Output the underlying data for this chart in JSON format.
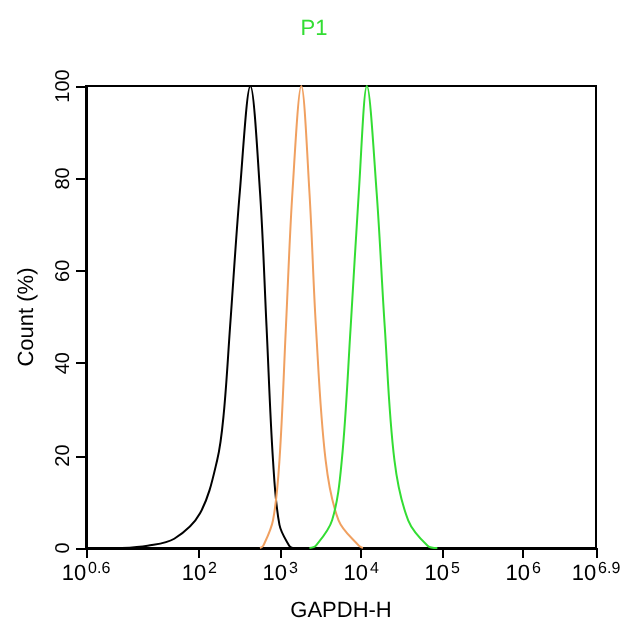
{
  "chart_data": {
    "type": "line",
    "title": "P1",
    "xlabel": "GAPDH-H",
    "ylabel": "Count (%)",
    "log": "x",
    "xlim": [
      3.981,
      7943282
    ],
    "xticks": [
      {
        "value": 3.981,
        "label": "10$^{0.6}$"
      },
      {
        "value": 100,
        "label": "10$^{2}$"
      },
      {
        "value": 1000,
        "label": "10$^{3}$"
      },
      {
        "value": 10000,
        "label": "10$^{4}$"
      },
      {
        "value": 100000,
        "label": "10$^{5}$"
      },
      {
        "value": 1000000,
        "label": "10$^{6}$"
      },
      {
        "value": 7943282,
        "label": "10$^{6.9}$"
      }
    ],
    "ylim": [
      0,
      100
    ],
    "yticks": [
      0,
      20,
      40,
      60,
      80,
      100
    ],
    "grid": false,
    "marker": "none",
    "line_style": "solid",
    "series": [
      {
        "color": "#000000",
        "x": [
          11,
          23,
          49,
          102,
          166,
          200,
          240,
          316,
          427,
          562,
          676,
          813,
          977,
          1288,
          1413
        ],
        "values": [
          0,
          0.5,
          2,
          7.5,
          19,
          29,
          48,
          77,
          100,
          77,
          48,
          19,
          5,
          0.5,
          0
        ]
      },
      {
        "color": "#f0a060",
        "x": [
          562,
          617,
          813,
          977,
          1175,
          1413,
          1820,
          2291,
          2754,
          3631,
          5248,
          9333,
          10471
        ],
        "values": [
          0,
          0.5,
          6,
          19,
          48,
          77,
          100,
          77,
          48,
          19,
          6,
          0.5,
          0
        ]
      },
      {
        "color": "#33dd33",
        "x": [
          2291,
          2754,
          4365,
          5754,
          7413,
          9333,
          11749,
          15488,
          19498,
          25704,
          38019,
          66069,
          87096
        ],
        "values": [
          0,
          0.5,
          6,
          19,
          48,
          77,
          100,
          77,
          48,
          19,
          6,
          0.5,
          0
        ]
      }
    ]
  }
}
